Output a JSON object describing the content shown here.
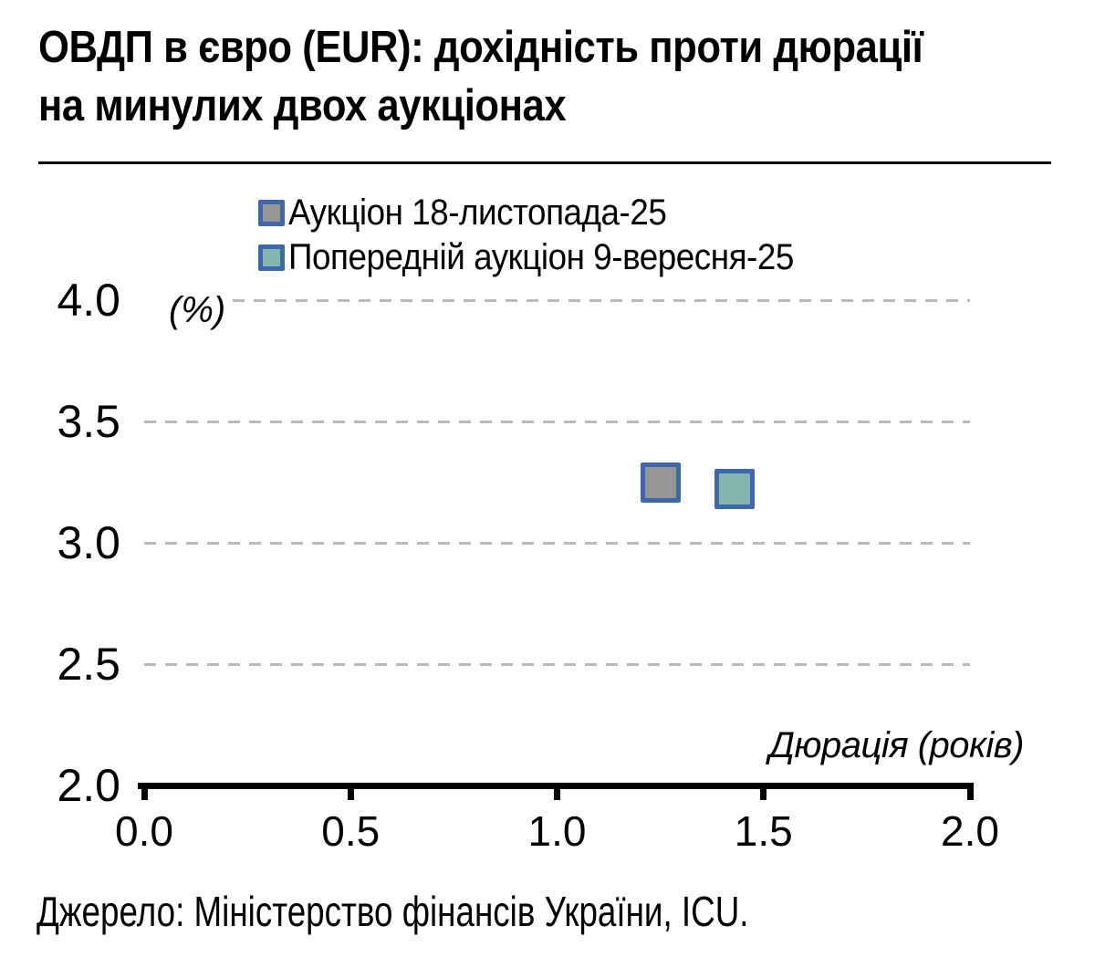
{
  "title_lines": [
    "ОВДП в євро (EUR): дохідність проти дюрації",
    "на минулих двох аукціонах"
  ],
  "source_note": "Джерело: Міністерство фінансів України, ICU.",
  "chart_data": {
    "type": "scatter",
    "title": "ОВДП в євро (EUR): дохідність проти дюрації на минулих двох аукціонах",
    "xlabel": "Дюрація (років)",
    "ylabel": "(%)",
    "xlim": [
      0.0,
      2.0
    ],
    "ylim": [
      2.0,
      4.0
    ],
    "x_ticks": [
      0.0,
      0.5,
      1.0,
      1.5,
      2.0
    ],
    "x_tick_labels": [
      "0.0",
      "0.5",
      "1.0",
      "1.5",
      "2.0"
    ],
    "y_ticks": [
      4.0,
      3.5,
      3.0,
      2.5,
      2.0
    ],
    "y_tick_labels": [
      "4.0",
      "3.5",
      "3.0",
      "2.5",
      "2.0"
    ],
    "grid": "horizontal-dashed",
    "legend_position": "top-left-inside",
    "marker": "square",
    "series": [
      {
        "name": "Аукціон 18-листопада-25",
        "fill": "#969696",
        "border": "#3E68AE",
        "points": [
          {
            "x": 1.25,
            "y": 3.25
          }
        ]
      },
      {
        "name": "Попередній аукціон 9-вересня-25",
        "fill": "#85B5AF",
        "border": "#3E68AE",
        "points": [
          {
            "x": 1.43,
            "y": 3.22
          }
        ]
      }
    ],
    "colors": {
      "grid": "#BABABA",
      "axis": "#000000",
      "text": "#111111"
    }
  }
}
